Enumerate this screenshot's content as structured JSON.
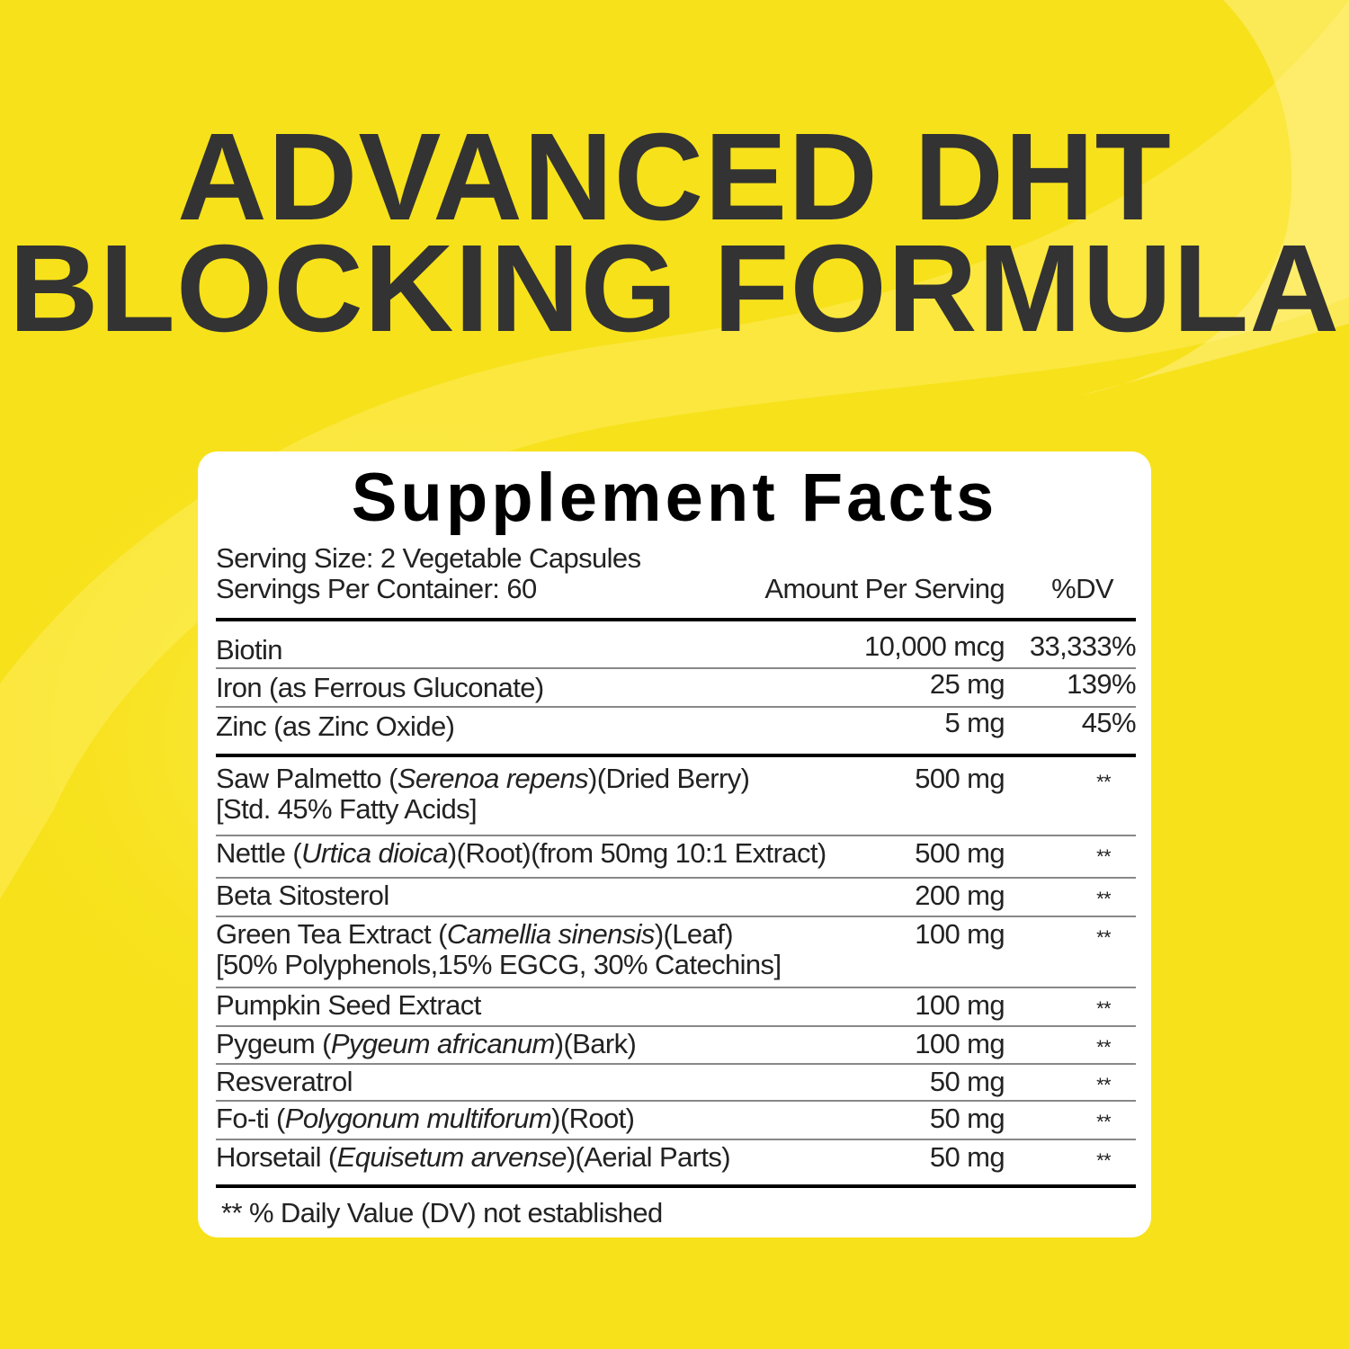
{
  "headline": {
    "line1": "ADVANCED DHT",
    "line2": "BLOCKING FORMULA"
  },
  "colors": {
    "background": "#f7e11a",
    "headline": "#333333",
    "card": "#ffffff"
  },
  "facts": {
    "title": "Supplement Facts",
    "serving_size": "Serving Size: 2 Vegetable Capsules",
    "servings_per_container": "Servings Per Container: 60",
    "amount_header": "Amount Per Serving",
    "dv_header": "%DV",
    "vitamins": [
      {
        "pre": "Biotin",
        "latin": "",
        "post": "",
        "line2": "",
        "amount": "10,000 mcg",
        "dv": "33,333%"
      },
      {
        "pre": "Iron (as Ferrous Gluconate)",
        "latin": "",
        "post": "",
        "line2": "",
        "amount": "25 mg",
        "dv": "139%"
      },
      {
        "pre": "Zinc (as Zinc Oxide)",
        "latin": "",
        "post": "",
        "line2": "",
        "amount": "5 mg",
        "dv": "45%"
      }
    ],
    "herbs": [
      {
        "pre": "Saw Palmetto (",
        "latin": "Serenoa repens",
        "post": ")(Dried Berry)",
        "line2": "[Std. 45% Fatty Acids]",
        "amount": "500 mg",
        "dv": "**"
      },
      {
        "pre": "Nettle (",
        "latin": "Urtica dioica",
        "post": ")(Root)(from 50mg 10:1 Extract)",
        "line2": "",
        "amount": "500 mg",
        "dv": "**"
      },
      {
        "pre": "Beta Sitosterol",
        "latin": "",
        "post": "",
        "line2": "",
        "amount": "200 mg",
        "dv": "**"
      },
      {
        "pre": "Green Tea Extract (",
        "latin": "Camellia sinensis",
        "post": ")(Leaf)",
        "line2": "[50% Polyphenols,15% EGCG, 30% Catechins]",
        "amount": "100 mg",
        "dv": "**"
      },
      {
        "pre": "Pumpkin Seed Extract",
        "latin": "",
        "post": "",
        "line2": "",
        "amount": "100 mg",
        "dv": "**"
      },
      {
        "pre": "Pygeum (",
        "latin": "Pygeum africanum",
        "post": ")(Bark)",
        "line2": "",
        "amount": "100 mg",
        "dv": "**"
      },
      {
        "pre": "Resveratrol",
        "latin": "",
        "post": "",
        "line2": "",
        "amount": "50 mg",
        "dv": "**"
      },
      {
        "pre": "Fo-ti (",
        "latin": "Polygonum multiforum",
        "post": ")(Root)",
        "line2": "",
        "amount": "50 mg",
        "dv": "**"
      },
      {
        "pre": "Horsetail (",
        "latin": "Equisetum arvense",
        "post": ")(Aerial Parts)",
        "line2": "",
        "amount": "50 mg",
        "dv": "**"
      }
    ],
    "footnote": "** % Daily Value (DV) not established"
  }
}
